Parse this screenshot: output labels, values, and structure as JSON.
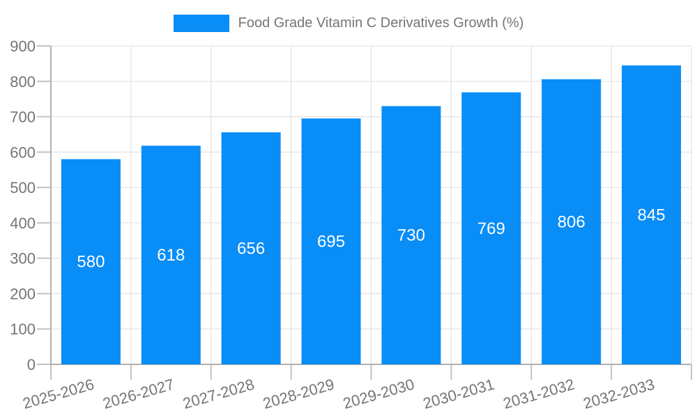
{
  "colors": {
    "grid": "#e4e4e4",
    "axis": "#b0b0b0",
    "tick": "#c2c2c2",
    "label": "#757575",
    "value_label": "#ffffff"
  },
  "chart_data": {
    "type": "bar",
    "title": "Food Grade Vitamin C Derivatives Growth (%)",
    "categories": [
      "2025-2026",
      "2026-2027",
      "2027-2028",
      "2028-2029",
      "2029-2030",
      "2030-2031",
      "2031-2032",
      "2032-2033"
    ],
    "values": [
      580,
      618,
      656,
      695,
      730,
      769,
      806,
      845
    ],
    "series": [
      {
        "name": "Food Grade Vitamin C Derivatives Growth (%)",
        "values": [
          580,
          618,
          656,
          695,
          730,
          769,
          806,
          845
        ]
      }
    ],
    "bar_color": "#098df7",
    "xlabel": "",
    "ylabel": "",
    "ylim": [
      0,
      900
    ],
    "ytick_step": 100,
    "grid": true,
    "legend_position": "top-center",
    "value_label_position": "inside-center",
    "x_label_rotation_deg": -16
  }
}
